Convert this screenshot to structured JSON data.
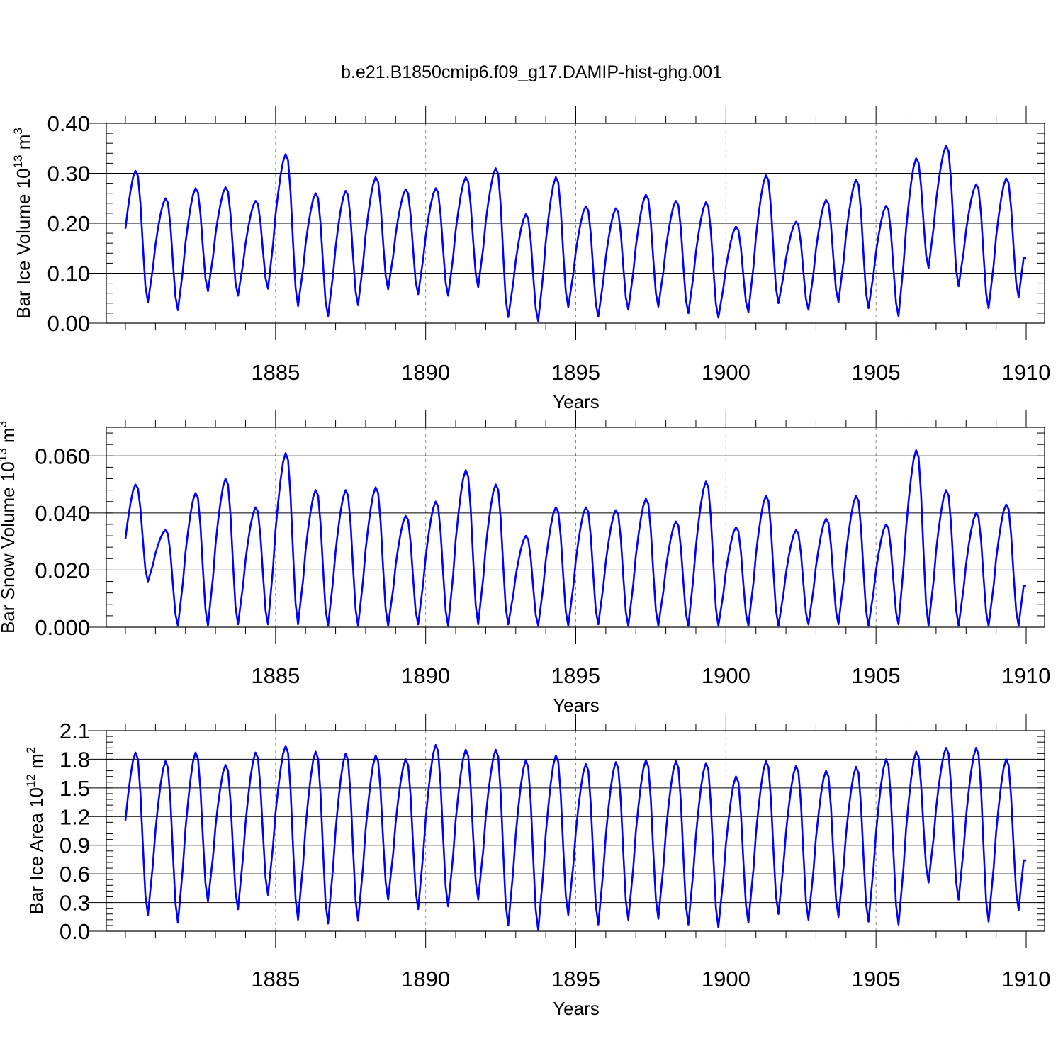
{
  "title": "b.e21.B1850cmip6.f09_g17.DAMIP-hist-ghg.001",
  "line_color": "#0000ff",
  "chart_data": [
    {
      "type": "line",
      "name": "ice-volume",
      "ylabel": "Bar Ice Volume 10",
      "ylabel_exp": "13",
      "ylabel_unit": " m",
      "ylabel_unit_exp": "3",
      "xlabel": "Years",
      "xlim": [
        1880,
        1910
      ],
      "ylim": [
        0,
        0.4
      ],
      "yticks": [
        0,
        0.1,
        0.2,
        0.3,
        0.4
      ],
      "ytick_labels": [
        "0.00",
        "0.10",
        "0.20",
        "0.30",
        "0.40"
      ],
      "xticks": [
        1885,
        1890,
        1895,
        1900,
        1905,
        1910
      ],
      "xtick_labels": [
        "1885",
        "1890",
        "1895",
        "1900",
        "1905",
        "1910"
      ],
      "peaks": [
        0.305,
        0.25,
        0.27,
        0.272,
        0.245,
        0.338,
        0.26,
        0.265,
        0.292,
        0.268,
        0.27,
        0.292,
        0.31,
        0.218,
        0.292,
        0.234,
        0.23,
        0.257,
        0.245,
        0.242,
        0.193,
        0.296,
        0.203,
        0.247,
        0.287,
        0.235,
        0.33,
        0.355,
        0.278,
        0.29
      ],
      "troughs": [
        0.042,
        0.026,
        0.064,
        0.055,
        0.069,
        0.034,
        0.014,
        0.036,
        0.068,
        0.058,
        0.055,
        0.072,
        0.012,
        0.004,
        0.032,
        0.013,
        0.027,
        0.033,
        0.02,
        0.011,
        0.022,
        0.04,
        0.027,
        0.042,
        0.03,
        0.014,
        0.11,
        0.074,
        0.03,
        0.052
      ]
    },
    {
      "type": "line",
      "name": "snow-volume",
      "ylabel": "Bar Snow Volume 10",
      "ylabel_exp": "13",
      "ylabel_unit": " m",
      "ylabel_unit_exp": "3",
      "xlabel": "Years",
      "xlim": [
        1880,
        1910
      ],
      "ylim": [
        0,
        0.07
      ],
      "yticks": [
        0,
        0.02,
        0.04,
        0.06
      ],
      "ytick_labels": [
        "0.000",
        "0.020",
        "0.040",
        "0.060"
      ],
      "xticks": [
        1885,
        1890,
        1895,
        1900,
        1905,
        1910
      ],
      "xtick_labels": [
        "1885",
        "1890",
        "1895",
        "1900",
        "1905",
        "1910"
      ],
      "peaks": [
        0.05,
        0.034,
        0.047,
        0.052,
        0.042,
        0.061,
        0.048,
        0.048,
        0.049,
        0.039,
        0.044,
        0.055,
        0.05,
        0.032,
        0.042,
        0.042,
        0.041,
        0.045,
        0.037,
        0.051,
        0.035,
        0.046,
        0.034,
        0.038,
        0.046,
        0.036,
        0.062,
        0.048,
        0.04,
        0.043
      ],
      "troughs": [
        0.016,
        0.0005,
        0.0005,
        0.001,
        0.001,
        0.001,
        0.0005,
        0.0005,
        0.0005,
        0.001,
        0.0005,
        0.001,
        0.001,
        0.0005,
        0.0005,
        0.001,
        0.0005,
        0.0005,
        0.0005,
        0.0005,
        0.0005,
        0.0005,
        0.001,
        0.001,
        0.0005,
        0.001,
        0.0005,
        0.0005,
        0.0005,
        0.0005
      ]
    },
    {
      "type": "line",
      "name": "ice-area",
      "ylabel": "Bar Ice Area 10",
      "ylabel_exp": "12",
      "ylabel_unit": " m",
      "ylabel_unit_exp": "2",
      "xlabel": "Years",
      "xlim": [
        1880,
        1910
      ],
      "ylim": [
        0,
        2.1
      ],
      "yticks": [
        0,
        0.3,
        0.6,
        0.9,
        1.2,
        1.5,
        1.8,
        2.1
      ],
      "ytick_labels": [
        "0.0",
        "0.3",
        "0.6",
        "0.9",
        "1.2",
        "1.5",
        "1.8",
        "2.1"
      ],
      "xticks": [
        1885,
        1890,
        1895,
        1900,
        1905,
        1910
      ],
      "xtick_labels": [
        "1885",
        "1890",
        "1895",
        "1900",
        "1905",
        "1910"
      ],
      "peaks": [
        1.87,
        1.78,
        1.87,
        1.74,
        1.87,
        1.94,
        1.88,
        1.86,
        1.84,
        1.8,
        1.95,
        1.9,
        1.9,
        1.79,
        1.84,
        1.75,
        1.77,
        1.79,
        1.78,
        1.76,
        1.62,
        1.78,
        1.73,
        1.68,
        1.72,
        1.8,
        1.88,
        1.92,
        1.92,
        1.8
      ],
      "troughs": [
        0.17,
        0.09,
        0.31,
        0.23,
        0.38,
        0.12,
        0.08,
        0.11,
        0.33,
        0.23,
        0.26,
        0.33,
        0.06,
        0.01,
        0.17,
        0.07,
        0.12,
        0.13,
        0.07,
        0.04,
        0.09,
        0.18,
        0.12,
        0.15,
        0.1,
        0.07,
        0.51,
        0.33,
        0.1,
        0.22
      ]
    }
  ]
}
